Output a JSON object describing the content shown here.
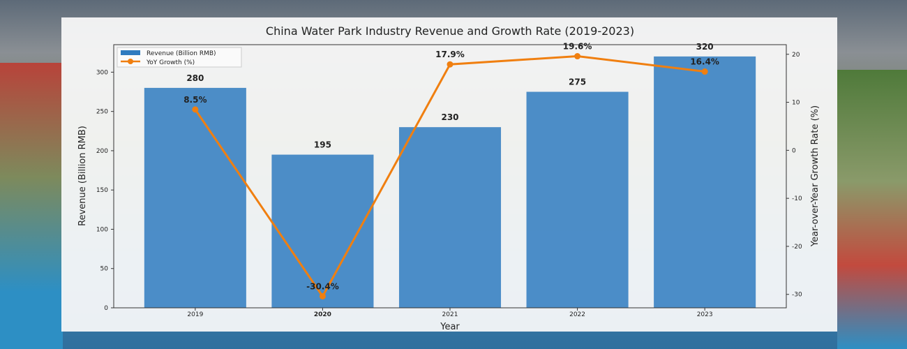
{
  "chart_data": {
    "type": "bar+line",
    "title": "China Water Park Industry Revenue and Growth Rate (2019-2023)",
    "xlabel": "Year",
    "ylabel": "Revenue (Billion RMB)",
    "y2label": "Year-over-Year Growth Rate (%)",
    "categories": [
      "2019",
      "2020",
      "2021",
      "2022",
      "2023"
    ],
    "series": [
      {
        "name": "Revenue (Billion RMB)",
        "type": "bar",
        "axis": "left",
        "values": [
          280,
          195,
          230,
          275,
          320
        ],
        "labels": [
          "280",
          "195",
          "230",
          "275",
          "320"
        ],
        "color": "#2f7bbf"
      },
      {
        "name": "YoY Growth (%)",
        "type": "line",
        "axis": "right",
        "values": [
          8.5,
          -30.4,
          17.9,
          19.6,
          16.4
        ],
        "labels": [
          "8.5%",
          "-30.4%",
          "17.9%",
          "19.6%",
          "16.4%"
        ],
        "color": "#f07f10"
      }
    ],
    "ylim": [
      0,
      335
    ],
    "y2lim": [
      -32.8,
      22
    ],
    "yticks": [
      0,
      50,
      100,
      150,
      200,
      250,
      300
    ],
    "y2ticks": [
      -30,
      -20,
      -10,
      0,
      10,
      20
    ],
    "legend": "top-left",
    "grid": false
  }
}
